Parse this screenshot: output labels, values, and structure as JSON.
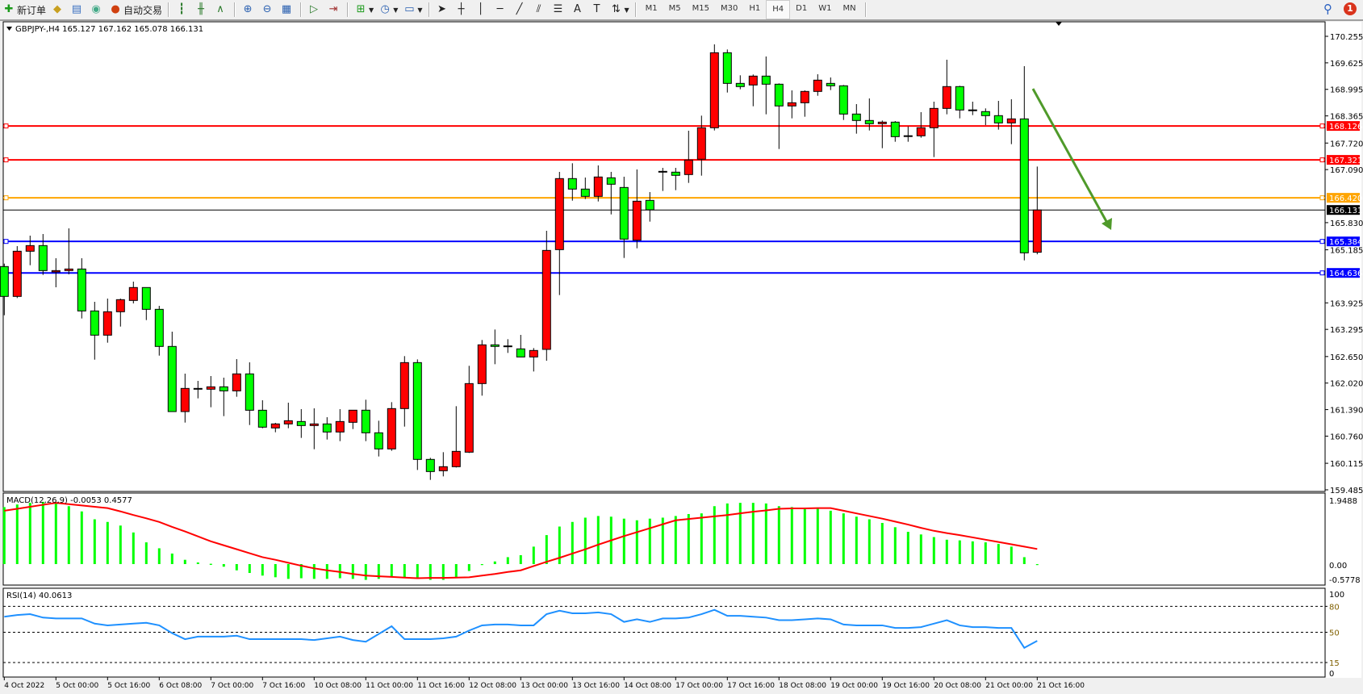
{
  "toolbar": {
    "new_order": "新订单",
    "auto_trading": "自动交易",
    "timeframes": [
      "M1",
      "M5",
      "M15",
      "M30",
      "H1",
      "H4",
      "D1",
      "W1",
      "MN"
    ],
    "active_timeframe": "H4",
    "notification_count": "1"
  },
  "chart_header": "GBPJPY-,H4  165.127 167.162 165.078 166.131",
  "colors": {
    "bull": "#ff0000",
    "bear": "#00ff00",
    "background": "#ffffff",
    "macd_hist": "#00ff00",
    "macd_signal": "#ff0000",
    "rsi": "#1e90ff",
    "arrow": "#4f9a2a"
  },
  "price_axis": [
    "170.255",
    "169.625",
    "168.995",
    "168.365",
    "167.720",
    "167.090",
    "165.830",
    "165.185",
    "163.925",
    "163.295",
    "162.650",
    "162.020",
    "161.390",
    "160.760",
    "160.115",
    "159.485"
  ],
  "horizontal_lines": [
    {
      "price": "168.126",
      "color": "#ff0000"
    },
    {
      "price": "167.321",
      "color": "#ff0000"
    },
    {
      "price": "166.420",
      "color": "#ffa500"
    },
    {
      "price": "165.384",
      "color": "#0000ff"
    },
    {
      "price": "164.636",
      "color": "#0000ff"
    }
  ],
  "bid_line": {
    "price": "166.131",
    "color": "#000000"
  },
  "time_axis": [
    "4 Oct 2022",
    "5 Oct 00:00",
    "5 Oct 16:00",
    "6 Oct 08:00",
    "7 Oct 00:00",
    "7 Oct 16:00",
    "10 Oct 08:00",
    "11 Oct 00:00",
    "11 Oct 16:00",
    "12 Oct 08:00",
    "13 Oct 00:00",
    "13 Oct 16:00",
    "14 Oct 08:00",
    "17 Oct 00:00",
    "17 Oct 16:00",
    "18 Oct 08:00",
    "19 Oct 00:00",
    "19 Oct 16:00",
    "20 Oct 08:00",
    "21 Oct 00:00",
    "21 Oct 16:00"
  ],
  "macd": {
    "label": "MACD(12,26,9) -0.0053 0.4577",
    "axis": [
      "1.9488",
      "0.00",
      "-0.5778"
    ]
  },
  "rsi": {
    "label": "RSI(14) 40.0613",
    "axis": [
      "100",
      "80",
      "50",
      "15",
      "0"
    ],
    "levels": [
      80,
      50,
      15
    ]
  },
  "chart_data": {
    "type": "candlestick",
    "symbol": "GBPJPY-",
    "timeframe": "H4",
    "ylim": [
      159.485,
      170.255
    ],
    "ohlc": [
      [
        164.787,
        164.857,
        163.631,
        164.078
      ],
      [
        164.078,
        165.272,
        164.039,
        165.151
      ],
      [
        165.151,
        165.521,
        164.819,
        165.285
      ],
      [
        165.285,
        165.56,
        164.589,
        164.691
      ],
      [
        164.659,
        164.985,
        164.295,
        164.691
      ],
      [
        164.691,
        165.694,
        164.602,
        164.729
      ],
      [
        164.729,
        164.985,
        163.554,
        163.733
      ],
      [
        163.733,
        163.95,
        162.576,
        163.158
      ],
      [
        163.158,
        164.027,
        162.979,
        163.714
      ],
      [
        163.714,
        164.027,
        163.362,
        164.001
      ],
      [
        163.982,
        164.429,
        163.912,
        164.289
      ],
      [
        164.289,
        164.289,
        163.516,
        163.771
      ],
      [
        163.771,
        163.854,
        162.672,
        162.89
      ],
      [
        162.89,
        163.241,
        161.343,
        161.343
      ],
      [
        161.343,
        162.244,
        161.082,
        161.893
      ],
      [
        161.88,
        162.072,
        161.657,
        161.893
      ],
      [
        161.874,
        162.187,
        161.446,
        161.931
      ],
      [
        161.931,
        162.149,
        161.235,
        161.835
      ],
      [
        161.835,
        162.589,
        161.695,
        162.238
      ],
      [
        162.238,
        162.513,
        161.024,
        161.375
      ],
      [
        161.375,
        161.612,
        160.947,
        160.973
      ],
      [
        160.954,
        161.075,
        160.852,
        161.05
      ],
      [
        161.05,
        161.554,
        160.948,
        161.126
      ],
      [
        161.107,
        161.401,
        160.718,
        161.011
      ],
      [
        161.011,
        161.42,
        160.449,
        161.05
      ],
      [
        161.05,
        161.209,
        160.679,
        160.858
      ],
      [
        160.858,
        161.401,
        160.641,
        161.107
      ],
      [
        161.088,
        161.376,
        160.928,
        161.376
      ],
      [
        161.376,
        161.625,
        160.641,
        160.839
      ],
      [
        160.839,
        161.126,
        160.277,
        160.456
      ],
      [
        160.456,
        161.567,
        160.411,
        161.414
      ],
      [
        161.414,
        162.66,
        160.986,
        162.506
      ],
      [
        162.506,
        162.583,
        159.957,
        160.207
      ],
      [
        160.207,
        160.245,
        159.721,
        159.919
      ],
      [
        159.938,
        160.379,
        159.804,
        160.034
      ],
      [
        160.034,
        161.471,
        160.015,
        160.398
      ],
      [
        160.379,
        162.43,
        160.36,
        162.008
      ],
      [
        162.008,
        163.043,
        161.721,
        162.928
      ],
      [
        162.928,
        163.292,
        162.468,
        162.89
      ],
      [
        162.89,
        163.062,
        162.736,
        162.902
      ],
      [
        162.832,
        163.164,
        162.64,
        162.64
      ],
      [
        162.64,
        162.851,
        162.295,
        162.794
      ],
      [
        162.82,
        165.637,
        162.55,
        165.17
      ],
      [
        165.189,
        167.036,
        164.11,
        166.876
      ],
      [
        166.876,
        167.24,
        166.352,
        166.627
      ],
      [
        166.627,
        166.901,
        166.39,
        166.454
      ],
      [
        166.454,
        167.189,
        166.333,
        166.914
      ],
      [
        166.895,
        167.036,
        166.026,
        166.742
      ],
      [
        166.665,
        166.921,
        164.991,
        165.439
      ],
      [
        165.413,
        167.093,
        165.221,
        166.339
      ],
      [
        166.358,
        166.556,
        165.854,
        166.135
      ],
      [
        167.036,
        167.131,
        166.582,
        167.048
      ],
      [
        167.029,
        167.131,
        166.601,
        166.953
      ],
      [
        166.972,
        168.013,
        166.774,
        167.317
      ],
      [
        167.336,
        168.371,
        166.946,
        168.083
      ],
      [
        168.083,
        170.064,
        168.019,
        169.865
      ],
      [
        169.865,
        169.942,
        168.92,
        169.137
      ],
      [
        169.137,
        169.329,
        168.997,
        169.061
      ],
      [
        169.099,
        169.348,
        168.594,
        169.31
      ],
      [
        169.31,
        169.776,
        168.403,
        169.118
      ],
      [
        169.118,
        169.137,
        167.579,
        168.601
      ],
      [
        168.601,
        168.971,
        168.307,
        168.677
      ],
      [
        168.677,
        168.971,
        168.345,
        168.946
      ],
      [
        168.946,
        169.354,
        168.843,
        169.214
      ],
      [
        169.137,
        169.278,
        168.978,
        169.08
      ],
      [
        169.08,
        169.099,
        168.268,
        168.409
      ],
      [
        168.409,
        168.645,
        167.943,
        168.256
      ],
      [
        168.256,
        168.78,
        168.019,
        168.179
      ],
      [
        168.179,
        168.256,
        167.598,
        168.217
      ],
      [
        168.217,
        168.243,
        167.751,
        167.872
      ],
      [
        167.888,
        168.115,
        167.751,
        167.894
      ],
      [
        167.892,
        168.454,
        167.847,
        168.083
      ],
      [
        168.083,
        168.703,
        167.387,
        168.543
      ],
      [
        168.543,
        169.699,
        168.403,
        169.061
      ],
      [
        169.061,
        169.08,
        168.307,
        168.505
      ],
      [
        168.503,
        168.703,
        168.384,
        168.507
      ],
      [
        168.467,
        168.543,
        168.147,
        168.371
      ],
      [
        168.371,
        168.722,
        168.039,
        168.198
      ],
      [
        168.198,
        168.76,
        167.694,
        168.294
      ],
      [
        168.294,
        169.546,
        164.934,
        165.113
      ],
      [
        165.127,
        167.162,
        165.078,
        166.131
      ]
    ],
    "macd_histogram": [
      1.73,
      1.81,
      1.86,
      1.89,
      1.86,
      1.76,
      1.6,
      1.36,
      1.28,
      1.17,
      0.96,
      0.66,
      0.48,
      0.32,
      0.13,
      0.05,
      0.01,
      -0.08,
      -0.19,
      -0.27,
      -0.35,
      -0.4,
      -0.45,
      -0.43,
      -0.45,
      -0.45,
      -0.43,
      -0.45,
      -0.48,
      -0.45,
      -0.4,
      -0.4,
      -0.45,
      -0.48,
      -0.48,
      -0.43,
      -0.21,
      -0.03,
      0.08,
      0.21,
      0.27,
      0.53,
      0.88,
      1.14,
      1.28,
      1.41,
      1.46,
      1.44,
      1.38,
      1.33,
      1.38,
      1.41,
      1.46,
      1.52,
      1.54,
      1.76,
      1.84,
      1.86,
      1.86,
      1.84,
      1.76,
      1.73,
      1.7,
      1.68,
      1.62,
      1.54,
      1.44,
      1.36,
      1.25,
      1.12,
      0.98,
      0.9,
      0.82,
      0.74,
      0.72,
      0.69,
      0.66,
      0.61,
      0.53,
      0.21,
      -0.0053
    ],
    "macd_signal": [
      1.62,
      1.68,
      1.74,
      1.8,
      1.86,
      1.82,
      1.78,
      1.74,
      1.7,
      1.6,
      1.49,
      1.39,
      1.28,
      1.13,
      0.99,
      0.84,
      0.69,
      0.57,
      0.45,
      0.33,
      0.21,
      0.13,
      0.04,
      -0.05,
      -0.13,
      -0.19,
      -0.24,
      -0.3,
      -0.35,
      -0.37,
      -0.39,
      -0.41,
      -0.43,
      -0.42,
      -0.42,
      -0.41,
      -0.4,
      -0.35,
      -0.3,
      -0.24,
      -0.19,
      -0.06,
      0.07,
      0.19,
      0.32,
      0.45,
      0.59,
      0.72,
      0.85,
      0.97,
      1.09,
      1.21,
      1.33,
      1.37,
      1.41,
      1.45,
      1.49,
      1.54,
      1.59,
      1.63,
      1.68,
      1.69,
      1.69,
      1.7,
      1.7,
      1.62,
      1.54,
      1.46,
      1.38,
      1.29,
      1.2,
      1.1,
      1.01,
      0.94,
      0.88,
      0.81,
      0.74,
      0.67,
      0.6,
      0.53,
      0.4577
    ],
    "macd_ylim": [
      -0.5778,
      1.9488
    ],
    "rsi_values": [
      68,
      70,
      71,
      67,
      66,
      66,
      66,
      60,
      58,
      59,
      60,
      61,
      58,
      49,
      42,
      45,
      45,
      45,
      46,
      42,
      42,
      42,
      42,
      42,
      41,
      43,
      45,
      41,
      39,
      48,
      57,
      42,
      42,
      42,
      43,
      45,
      52,
      58,
      59,
      59,
      58,
      58,
      71,
      75,
      72,
      72,
      73,
      71,
      62,
      65,
      62,
      66,
      66,
      67,
      71,
      76,
      69,
      69,
      68,
      67,
      64,
      64,
      65,
      66,
      65,
      59,
      58,
      58,
      58,
      55,
      55,
      56,
      60,
      64,
      58,
      56,
      56,
      55,
      55,
      32,
      40.0613
    ],
    "rsi_ylim": [
      0,
      100
    ]
  }
}
